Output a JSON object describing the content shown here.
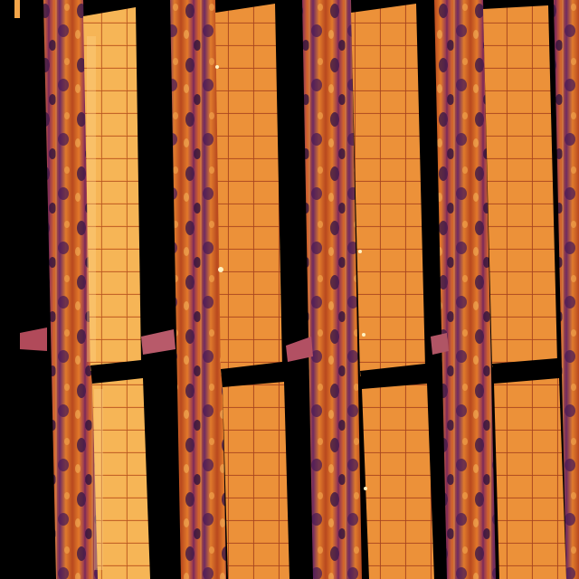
{
  "image": {
    "kind": "thermal-aerial",
    "palette": {
      "background": "#000000",
      "ground_dark": "#3a1a4a",
      "ground_mid": "#7a2d6a",
      "ground_warm": "#c8501e",
      "panel_base": "#e98a2e",
      "panel_hot": "#f6b552",
      "panel_grid": "#a13f22",
      "highlight": "#ffe39a"
    }
  }
}
